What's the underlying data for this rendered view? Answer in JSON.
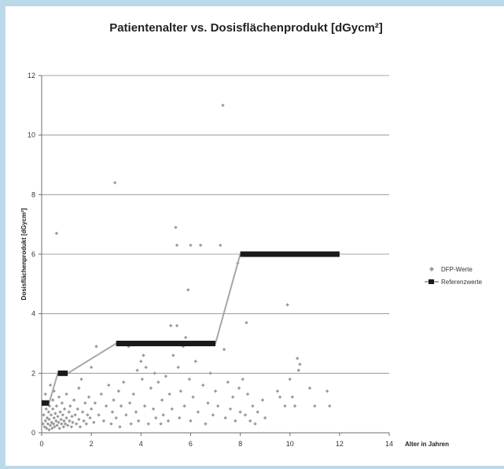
{
  "chart_data": {
    "type": "scatter",
    "title": "Patientenalter vs. Dosisflächenprodukt  [dGycm²]",
    "xlabel": "Alter in Jahren",
    "ylabel": "Dosisflächenprodukt [dGycm²]",
    "xlim": [
      0,
      14
    ],
    "ylim": [
      0,
      12
    ],
    "x_ticks": [
      0,
      2,
      4,
      6,
      8,
      10,
      12,
      14
    ],
    "y_ticks": [
      0,
      2,
      4,
      6,
      8,
      10,
      12
    ],
    "grid": "horizontal",
    "legend_position": "right",
    "colors": {
      "scatter": "#9a9a9a",
      "reference_line": "#a6a6a6",
      "reference_marker": "#1a1a1a",
      "frame": "#bcd9ea"
    },
    "series": [
      {
        "name": "DFP-Werte",
        "marker": "diamond",
        "points": [
          [
            0.05,
            0.3
          ],
          [
            0.08,
            0.6
          ],
          [
            0.1,
            1.0
          ],
          [
            0.12,
            0.2
          ],
          [
            0.15,
            0.4
          ],
          [
            0.15,
            1.3
          ],
          [
            0.18,
            0.8
          ],
          [
            0.2,
            0.15
          ],
          [
            0.22,
            0.5
          ],
          [
            0.25,
            0.3
          ],
          [
            0.28,
            0.7
          ],
          [
            0.3,
            0.1
          ],
          [
            0.3,
            0.45
          ],
          [
            0.32,
            0.9
          ],
          [
            0.35,
            0.25
          ],
          [
            0.35,
            1.6
          ],
          [
            0.38,
            0.6
          ],
          [
            0.4,
            0.35
          ],
          [
            0.42,
            0.15
          ],
          [
            0.45,
            0.8
          ],
          [
            0.45,
            1.1
          ],
          [
            0.48,
            0.3
          ],
          [
            0.5,
            0.5
          ],
          [
            0.5,
            1.4
          ],
          [
            0.52,
            0.2
          ],
          [
            0.55,
            0.65
          ],
          [
            0.58,
            0.4
          ],
          [
            0.6,
            6.7
          ],
          [
            0.6,
            0.9
          ],
          [
            0.62,
            0.25
          ],
          [
            0.65,
            0.55
          ],
          [
            0.68,
            0.35
          ],
          [
            0.7,
            1.2
          ],
          [
            0.72,
            0.15
          ],
          [
            0.75,
            0.7
          ],
          [
            0.78,
            0.45
          ],
          [
            0.8,
            0.3
          ],
          [
            0.82,
            1.0
          ],
          [
            0.85,
            0.6
          ],
          [
            0.88,
            0.2
          ],
          [
            0.9,
            0.4
          ],
          [
            0.92,
            0.8
          ],
          [
            0.95,
            0.3
          ],
          [
            1.0,
            0.5
          ],
          [
            1.0,
            1.3
          ],
          [
            1.05,
            0.25
          ],
          [
            1.1,
            0.7
          ],
          [
            1.12,
            0.4
          ],
          [
            1.15,
            0.9
          ],
          [
            1.2,
            0.2
          ],
          [
            1.22,
            0.55
          ],
          [
            1.25,
            0.35
          ],
          [
            1.3,
            1.1
          ],
          [
            1.35,
            0.6
          ],
          [
            1.4,
            0.3
          ],
          [
            1.45,
            0.8
          ],
          [
            1.5,
            1.5
          ],
          [
            1.5,
            0.45
          ],
          [
            1.55,
            0.2
          ],
          [
            1.6,
            1.8
          ],
          [
            1.65,
            0.7
          ],
          [
            1.7,
            0.4
          ],
          [
            1.75,
            1.0
          ],
          [
            1.8,
            0.3
          ],
          [
            1.85,
            0.6
          ],
          [
            1.9,
            1.2
          ],
          [
            1.95,
            0.5
          ],
          [
            2.0,
            0.8
          ],
          [
            2.0,
            2.2
          ],
          [
            2.1,
            0.35
          ],
          [
            2.15,
            1.0
          ],
          [
            2.2,
            2.9
          ],
          [
            2.3,
            0.6
          ],
          [
            2.4,
            1.3
          ],
          [
            2.5,
            0.4
          ],
          [
            2.6,
            0.9
          ],
          [
            2.7,
            1.6
          ],
          [
            2.8,
            0.3
          ],
          [
            2.85,
            0.7
          ],
          [
            2.9,
            1.1
          ],
          [
            2.95,
            8.4
          ],
          [
            3.0,
            0.5
          ],
          [
            3.1,
            1.4
          ],
          [
            3.15,
            0.2
          ],
          [
            3.2,
            0.9
          ],
          [
            3.3,
            1.7
          ],
          [
            3.4,
            0.6
          ],
          [
            3.5,
            2.9
          ],
          [
            3.55,
            1.0
          ],
          [
            3.6,
            0.3
          ],
          [
            3.7,
            1.3
          ],
          [
            3.8,
            0.7
          ],
          [
            3.85,
            2.1
          ],
          [
            3.9,
            0.4
          ],
          [
            4.0,
            2.4
          ],
          [
            4.05,
            1.8
          ],
          [
            4.1,
            2.6
          ],
          [
            4.15,
            0.9
          ],
          [
            4.2,
            2.2
          ],
          [
            4.3,
            0.3
          ],
          [
            4.4,
            1.5
          ],
          [
            4.5,
            0.8
          ],
          [
            4.55,
            2.0
          ],
          [
            4.6,
            0.5
          ],
          [
            4.7,
            1.7
          ],
          [
            4.8,
            0.3
          ],
          [
            4.85,
            1.1
          ],
          [
            4.9,
            0.6
          ],
          [
            5.0,
            1.9
          ],
          [
            5.1,
            0.4
          ],
          [
            5.15,
            1.3
          ],
          [
            5.2,
            3.6
          ],
          [
            5.25,
            0.8
          ],
          [
            5.3,
            2.6
          ],
          [
            5.4,
            6.9
          ],
          [
            5.45,
            3.6
          ],
          [
            5.45,
            6.3
          ],
          [
            5.5,
            2.2
          ],
          [
            5.55,
            0.5
          ],
          [
            5.6,
            1.4
          ],
          [
            5.7,
            2.9
          ],
          [
            5.75,
            0.9
          ],
          [
            5.8,
            3.2
          ],
          [
            5.9,
            4.8
          ],
          [
            5.95,
            1.8
          ],
          [
            6.0,
            6.3
          ],
          [
            6.0,
            0.4
          ],
          [
            6.1,
            1.2
          ],
          [
            6.2,
            2.4
          ],
          [
            6.3,
            0.7
          ],
          [
            6.4,
            6.3
          ],
          [
            6.5,
            1.6
          ],
          [
            6.6,
            0.3
          ],
          [
            6.7,
            1.0
          ],
          [
            6.8,
            2.0
          ],
          [
            6.9,
            0.6
          ],
          [
            7.0,
            1.4
          ],
          [
            7.1,
            0.9
          ],
          [
            7.2,
            6.3
          ],
          [
            7.3,
            11.0
          ],
          [
            7.35,
            2.8
          ],
          [
            7.4,
            0.5
          ],
          [
            7.5,
            1.7
          ],
          [
            7.6,
            0.8
          ],
          [
            7.7,
            1.2
          ],
          [
            7.8,
            0.4
          ],
          [
            7.9,
            5.7
          ],
          [
            7.95,
            1.5
          ],
          [
            8.0,
            0.7
          ],
          [
            8.1,
            1.8
          ],
          [
            8.2,
            0.6
          ],
          [
            8.25,
            3.7
          ],
          [
            8.3,
            1.3
          ],
          [
            8.4,
            0.4
          ],
          [
            8.5,
            0.9
          ],
          [
            8.6,
            0.3
          ],
          [
            8.7,
            0.7
          ],
          [
            8.9,
            1.1
          ],
          [
            9.0,
            0.5
          ],
          [
            9.5,
            1.4
          ],
          [
            9.6,
            1.2
          ],
          [
            9.8,
            0.9
          ],
          [
            9.9,
            4.3
          ],
          [
            10.0,
            1.8
          ],
          [
            10.1,
            1.2
          ],
          [
            10.2,
            0.9
          ],
          [
            10.3,
            2.5
          ],
          [
            10.35,
            2.1
          ],
          [
            10.4,
            2.3
          ],
          [
            10.5,
            6.0
          ],
          [
            10.8,
            1.5
          ],
          [
            11.0,
            0.9
          ],
          [
            11.5,
            1.4
          ],
          [
            11.6,
            0.9
          ]
        ]
      },
      {
        "name": "Referenzwerte",
        "marker": "square",
        "segments": [
          {
            "x_start": 0.0,
            "x_end": 0.3,
            "y": 1.0
          },
          {
            "x_start": 0.65,
            "x_end": 1.05,
            "y": 2.0
          },
          {
            "x_start": 3.0,
            "x_end": 7.0,
            "y": 3.0
          },
          {
            "x_start": 8.0,
            "x_end": 12.0,
            "y": 6.0
          }
        ]
      }
    ]
  }
}
